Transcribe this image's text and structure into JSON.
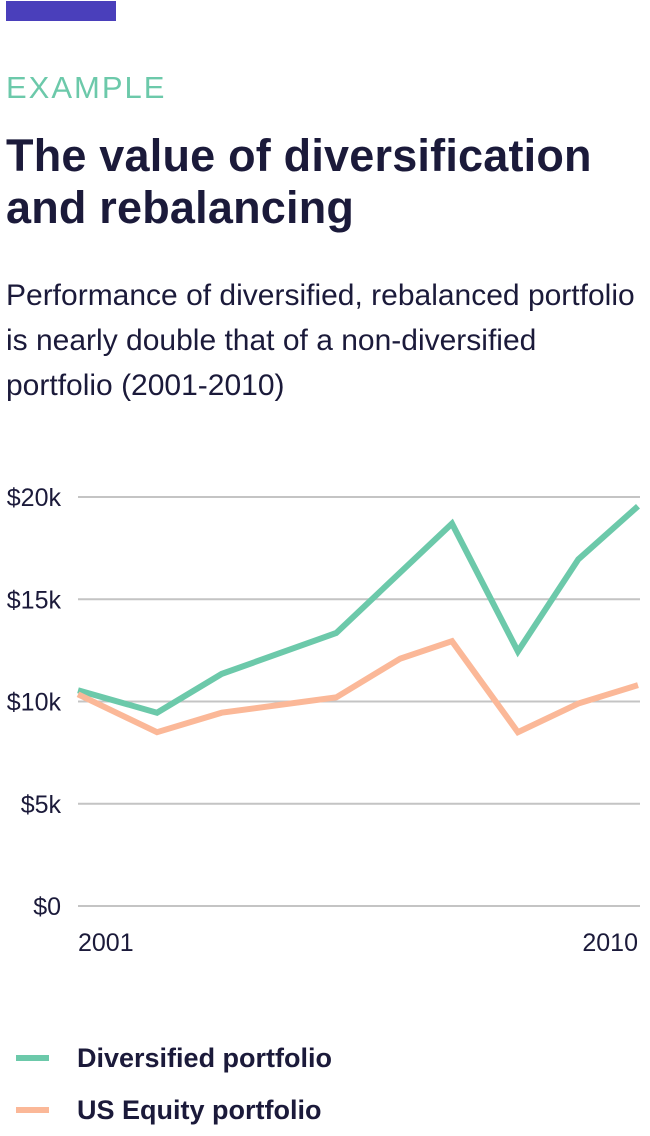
{
  "header": {
    "eyebrow": "EXAMPLE",
    "title": "The value of diversification and rebalancing",
    "subtitle": "Performance of diversified, rebalanced portfolio is nearly double that of a non-diversified portfolio (2001-2010)"
  },
  "colors": {
    "accent_bar": "#4a3fbb",
    "eyebrow": "#6cc9aa",
    "text": "#1b1a3a",
    "grid": "#c4c4c4"
  },
  "chart_data": {
    "type": "line",
    "title": "The value of diversification and rebalancing",
    "subtitle": "Performance of diversified, rebalanced portfolio is nearly double that of a non-diversified portfolio (2001-2010)",
    "xlabel": "",
    "ylabel": "",
    "xlim": [
      2001,
      2010
    ],
    "ylim": [
      0,
      20000
    ],
    "x_ticks": [
      {
        "value": 2001,
        "label": "2001"
      },
      {
        "value": 2010,
        "label": "2010"
      }
    ],
    "y_ticks": [
      {
        "value": 20000,
        "label": "$20k"
      },
      {
        "value": 15000,
        "label": "$15k"
      },
      {
        "value": 10000,
        "label": "$10k"
      },
      {
        "value": 5000,
        "label": "$5k"
      },
      {
        "value": 0,
        "label": "$0"
      }
    ],
    "grid": true,
    "legend_position": "bottom-left",
    "series": [
      {
        "name": "Diversified portfolio",
        "color": "#6cc9aa",
        "points": [
          {
            "x": 2001.0,
            "y": 10550
          },
          {
            "x": 2002.27,
            "y": 9450
          },
          {
            "x": 2003.31,
            "y": 11350
          },
          {
            "x": 2005.15,
            "y": 13350
          },
          {
            "x": 2007.01,
            "y": 18700
          },
          {
            "x": 2008.07,
            "y": 12450
          },
          {
            "x": 2009.04,
            "y": 16950
          },
          {
            "x": 2010.0,
            "y": 19550
          }
        ]
      },
      {
        "name": "US Equity portfolio",
        "color": "#fbb898",
        "points": [
          {
            "x": 2001.0,
            "y": 10350
          },
          {
            "x": 2002.27,
            "y": 8500
          },
          {
            "x": 2003.31,
            "y": 9450
          },
          {
            "x": 2005.15,
            "y": 10200
          },
          {
            "x": 2006.18,
            "y": 12100
          },
          {
            "x": 2007.01,
            "y": 12950
          },
          {
            "x": 2008.07,
            "y": 8500
          },
          {
            "x": 2009.04,
            "y": 9900
          },
          {
            "x": 2010.0,
            "y": 10800
          }
        ]
      }
    ]
  },
  "legend": [
    {
      "label": "Diversified portfolio",
      "color": "#6cc9aa"
    },
    {
      "label": "US Equity portfolio",
      "color": "#fbb898"
    }
  ]
}
